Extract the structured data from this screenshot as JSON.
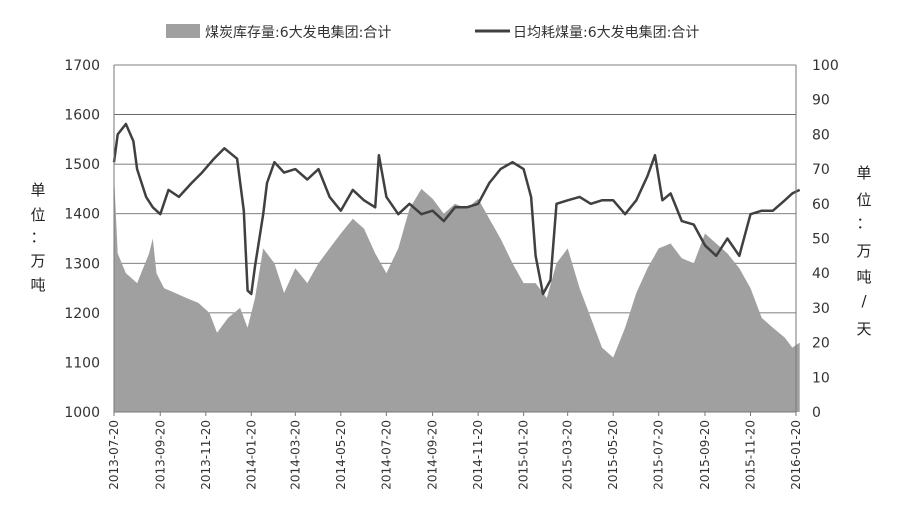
{
  "chart_data": {
    "type": "area+line",
    "legend": {
      "placement": "top-center",
      "items": [
        {
          "label": "煤炭库存量:6大发电集团:合计",
          "kind": "area",
          "color": "#a0a0a0"
        },
        {
          "label": "日均耗煤量:6大发电集团:合计",
          "kind": "line",
          "color": "#404040"
        }
      ]
    },
    "y_left": {
      "unit": [
        "单",
        "位",
        "：",
        "万",
        "吨"
      ],
      "ticks": [
        "1700",
        "1600",
        "1500",
        "1400",
        "1300",
        "1200",
        "1100",
        "1000"
      ],
      "range": [
        1000,
        1700
      ]
    },
    "y_right": {
      "unit": [
        "单",
        "位",
        "：",
        "万",
        "吨",
        "/",
        "天"
      ],
      "ticks": [
        "100",
        "90",
        "80",
        "70",
        "60",
        "50",
        "40",
        "30",
        "20",
        "10",
        "0"
      ],
      "range": [
        0,
        100
      ]
    },
    "x_ticks": [
      "2013-07-20",
      "2013-09-20",
      "2013-11-20",
      "2014-01-20",
      "2014-03-20",
      "2014-05-20",
      "2014-07-20",
      "2014-09-20",
      "2014-11-20",
      "2015-01-20",
      "2015-03-20",
      "2015-05-20",
      "2015-07-20",
      "2015-09-20",
      "2015-11-20",
      "2016-01-20"
    ],
    "grid": true,
    "series": [
      {
        "name": "煤炭库存量:6大发电集团:合计",
        "axis": "left",
        "x": [
          "2013-07-20",
          "2013-07-25",
          "2013-08-05",
          "2013-08-20",
          "2013-09-05",
          "2013-09-10",
          "2013-09-15",
          "2013-09-25",
          "2013-10-10",
          "2013-10-25",
          "2013-11-10",
          "2013-11-25",
          "2013-12-05",
          "2013-12-20",
          "2014-01-05",
          "2014-01-15",
          "2014-01-25",
          "2014-02-05",
          "2014-02-20",
          "2014-03-05",
          "2014-03-20",
          "2014-04-05",
          "2014-04-20",
          "2014-05-05",
          "2014-05-20",
          "2014-06-05",
          "2014-06-20",
          "2014-07-05",
          "2014-07-20",
          "2014-08-05",
          "2014-08-20",
          "2014-09-05",
          "2014-09-20",
          "2014-10-05",
          "2014-10-20",
          "2014-11-05",
          "2014-11-20",
          "2014-12-05",
          "2014-12-20",
          "2015-01-05",
          "2015-01-20",
          "2015-02-05",
          "2015-02-20",
          "2015-03-05",
          "2015-03-20",
          "2015-04-05",
          "2015-04-20",
          "2015-05-05",
          "2015-05-20",
          "2015-06-05",
          "2015-06-20",
          "2015-07-05",
          "2015-07-20",
          "2015-08-05",
          "2015-08-20",
          "2015-09-05",
          "2015-09-20",
          "2015-10-05",
          "2015-10-20",
          "2015-11-05",
          "2015-11-20",
          "2015-12-05",
          "2015-12-20",
          "2016-01-05",
          "2016-01-15",
          "2016-01-25"
        ],
        "values": [
          1480,
          1320,
          1280,
          1260,
          1320,
          1350,
          1280,
          1250,
          1240,
          1230,
          1220,
          1200,
          1160,
          1190,
          1210,
          1170,
          1230,
          1330,
          1300,
          1240,
          1290,
          1260,
          1300,
          1330,
          1360,
          1390,
          1370,
          1320,
          1280,
          1330,
          1410,
          1450,
          1430,
          1400,
          1420,
          1410,
          1430,
          1390,
          1350,
          1300,
          1260,
          1260,
          1230,
          1300,
          1330,
          1250,
          1190,
          1130,
          1110,
          1170,
          1240,
          1290,
          1330,
          1340,
          1310,
          1300,
          1360,
          1340,
          1320,
          1290,
          1250,
          1190,
          1170,
          1150,
          1130,
          1140
        ]
      },
      {
        "name": "日均耗煤量:6大发电集团:合计",
        "axis": "right",
        "x": [
          "2013-07-20",
          "2013-07-25",
          "2013-08-05",
          "2013-08-15",
          "2013-08-20",
          "2013-09-01",
          "2013-09-10",
          "2013-09-20",
          "2013-10-01",
          "2013-10-15",
          "2013-11-01",
          "2013-11-15",
          "2013-12-01",
          "2013-12-15",
          "2014-01-01",
          "2014-01-10",
          "2014-01-15",
          "2014-01-20",
          "2014-01-25",
          "2014-02-05",
          "2014-02-10",
          "2014-02-20",
          "2014-03-05",
          "2014-03-20",
          "2014-04-05",
          "2014-04-20",
          "2014-05-05",
          "2014-05-20",
          "2014-06-05",
          "2014-06-20",
          "2014-07-05",
          "2014-07-10",
          "2014-07-20",
          "2014-08-05",
          "2014-08-20",
          "2014-09-05",
          "2014-09-20",
          "2014-10-05",
          "2014-10-20",
          "2014-11-05",
          "2014-11-20",
          "2014-12-05",
          "2014-12-20",
          "2015-01-05",
          "2015-01-20",
          "2015-01-30",
          "2015-02-05",
          "2015-02-15",
          "2015-02-25",
          "2015-03-05",
          "2015-03-20",
          "2015-04-05",
          "2015-04-20",
          "2015-05-05",
          "2015-05-20",
          "2015-06-05",
          "2015-06-20",
          "2015-07-05",
          "2015-07-15",
          "2015-07-25",
          "2015-08-05",
          "2015-08-20",
          "2015-09-05",
          "2015-09-20",
          "2015-10-05",
          "2015-10-20",
          "2015-11-05",
          "2015-11-20",
          "2015-12-05",
          "2015-12-20",
          "2016-01-05",
          "2016-01-15",
          "2016-01-25"
        ],
        "values": [
          72,
          80,
          83,
          78,
          70,
          62,
          59,
          57,
          64,
          62,
          66,
          69,
          73,
          76,
          73,
          58,
          35,
          34,
          42,
          57,
          66,
          72,
          69,
          70,
          67,
          70,
          62,
          58,
          64,
          61,
          59,
          74,
          62,
          57,
          60,
          57,
          58,
          55,
          59,
          59,
          60,
          66,
          70,
          72,
          70,
          62,
          45,
          34,
          38,
          60,
          61,
          62,
          60,
          61,
          61,
          57,
          61,
          68,
          74,
          61,
          63,
          55,
          54,
          48,
          45,
          50,
          45,
          57,
          58,
          58,
          61,
          63,
          64
        ]
      }
    ]
  }
}
